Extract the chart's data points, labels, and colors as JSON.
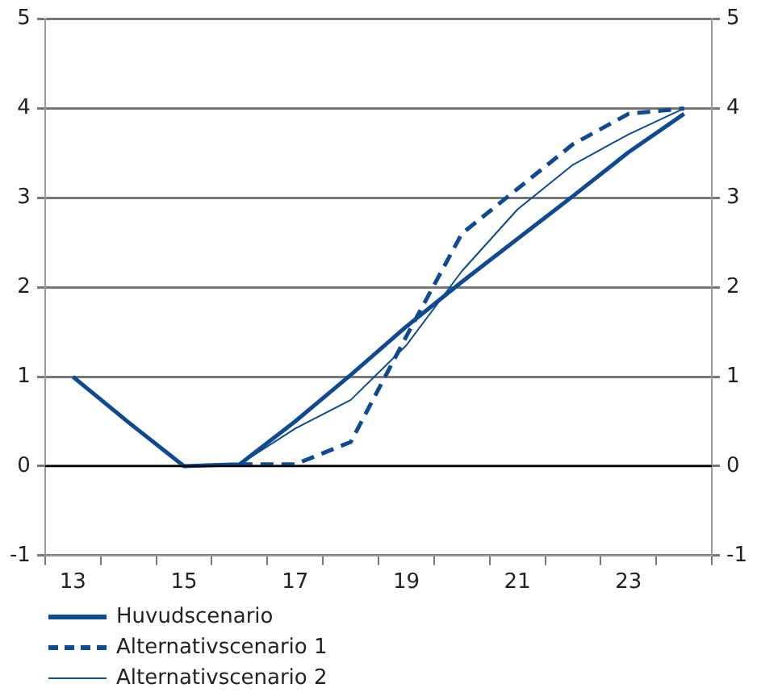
{
  "chart_data": {
    "type": "line",
    "categories": [
      "13",
      null,
      "15",
      null,
      "17",
      null,
      "19",
      null,
      "21",
      null,
      "23",
      null
    ],
    "series": [
      {
        "name": "Huvudscenario",
        "color": "#0d4a8f",
        "line_style": "solid",
        "values": [
          1.0,
          0.49,
          0,
          0.02,
          0.5,
          1.02,
          1.56,
          2.06,
          2.54,
          3.02,
          3.51,
          3.94
        ]
      },
      {
        "name": "Alternativscenario 1",
        "color": "#0d4a8f",
        "line_style": "dashed",
        "values": [
          null,
          null,
          null,
          0.02,
          0.02,
          0.27,
          1.45,
          2.6,
          3.1,
          3.6,
          3.94,
          4.0
        ]
      },
      {
        "name": "Alternativscenario 2",
        "color": "#0d4a8f",
        "line_style": "solid",
        "values": [
          null,
          null,
          null,
          0.02,
          0.42,
          0.74,
          1.35,
          2.18,
          2.87,
          3.37,
          3.71,
          4.0
        ]
      }
    ],
    "ylim": [
      -1,
      5
    ],
    "yticks": [
      -1,
      0,
      1,
      2,
      3,
      4,
      5
    ],
    "y2lim": [
      -1,
      5
    ],
    "y2ticks": [
      -1,
      0,
      1,
      2,
      3,
      4,
      5
    ],
    "grid": "y",
    "legend": "bottom left",
    "marker": "none",
    "ref_lines": [
      {
        "axis": "y",
        "value": 0,
        "color": "#000000"
      }
    ]
  }
}
